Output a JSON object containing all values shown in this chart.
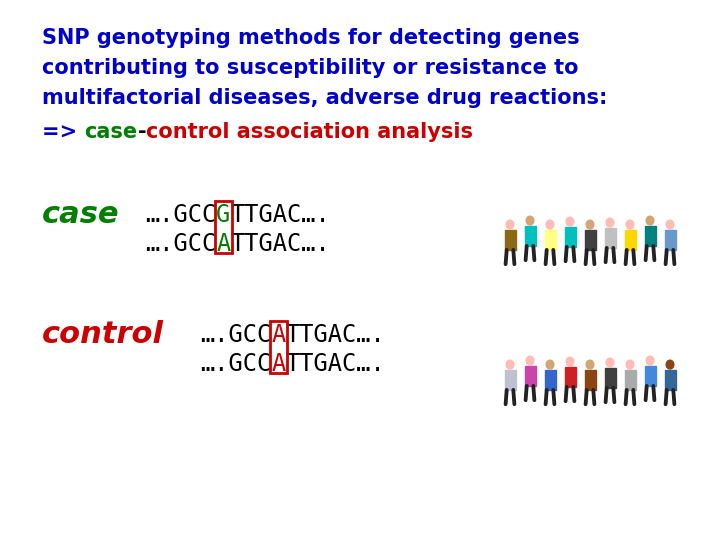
{
  "title_line1": "SNP genotyping methods for detecting genes",
  "title_line2": "contributing to susceptibility or resistance to",
  "title_line3": "multifactorial diseases, adverse drug reactions:",
  "title_color": "#0000CC",
  "title_fontsize": 15,
  "subtitle_fontsize": 15,
  "case_color": "#008000",
  "control_color": "#CC0000",
  "red_color": "#CC0000",
  "black_color": "#000000",
  "case_word_fontsize": 22,
  "control_word_fontsize": 22,
  "seq_fontsize": 17,
  "seq_color": "#000000",
  "highlight_color": "#008000",
  "box_color": "#CC0000",
  "bg_color": "#FFFFFF",
  "case_people_colors": [
    "#8B6914",
    "#00BFBF",
    "#FFFF80",
    "#00BFBF",
    "#404040",
    "#C0C0C0",
    "#FFD700",
    "#008080",
    "#6699CC"
  ],
  "ctrl_people_colors": [
    "#C0C0D0",
    "#CC44AA",
    "#3366CC",
    "#CC2222",
    "#8B4513",
    "#404040",
    "#AAAAAA",
    "#4488DD",
    "#336699"
  ]
}
